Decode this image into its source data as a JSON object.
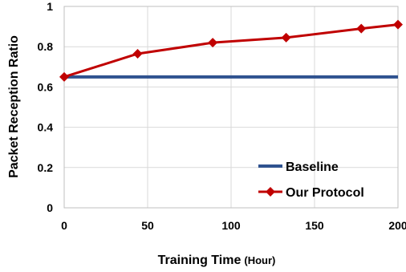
{
  "chart_data": {
    "type": "line",
    "xlabel": "Training Time",
    "xlabel_unit": "(Hour)",
    "ylabel": "Packet Reception Ratio",
    "xlim": [
      0,
      200
    ],
    "ylim": [
      0,
      1
    ],
    "xticks": [
      "0",
      "50",
      "100",
      "150",
      "200"
    ],
    "yticks": [
      "0",
      "0.2",
      "0.4",
      "0.6",
      "0.8",
      "1"
    ],
    "grid": true,
    "legend_position": "bottom-right",
    "series": [
      {
        "name": "Baseline",
        "color": "#2F528F",
        "marker": "none",
        "x": [
          0,
          200
        ],
        "y": [
          0.65,
          0.65
        ]
      },
      {
        "name": "Our Protocol",
        "color": "#C00000",
        "marker": "diamond",
        "x": [
          0,
          44,
          89,
          133,
          178,
          200
        ],
        "y": [
          0.65,
          0.765,
          0.82,
          0.845,
          0.89,
          0.91
        ]
      }
    ]
  }
}
